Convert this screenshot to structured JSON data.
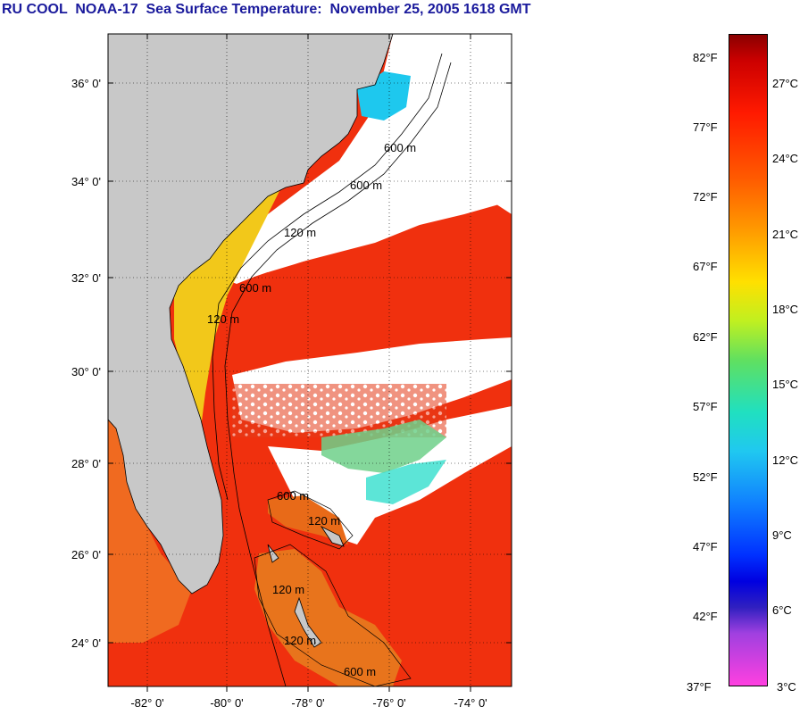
{
  "title": "RU COOL  NOAA-17  Sea Surface Temperature:  November 25, 2005 1618 GMT",
  "map": {
    "lat_labels": [
      "36° 0'",
      "34° 0'",
      "32° 0'",
      "30° 0'",
      "28° 0'",
      "26° 0'",
      "24° 0'"
    ],
    "lon_labels": [
      "-82° 0'",
      "-80° 0'",
      "-78° 0'",
      "-76° 0'",
      "-74° 0'"
    ],
    "contour_labels": [
      "120 m",
      "600 m",
      "120 m",
      "600 m",
      "600 m",
      "120 m",
      "600 m",
      "120 m",
      "120 m",
      "600 m"
    ],
    "colors": {
      "land": "#c8c8c8",
      "cloud": "#ffffff",
      "warm": "#ee2a10",
      "hot": "#ff1a00"
    }
  },
  "colorbar": {
    "fahrenheit": [
      "82°F",
      "77°F",
      "72°F",
      "67°F",
      "62°F",
      "57°F",
      "52°F",
      "47°F",
      "42°F",
      "37°F"
    ],
    "celsius": [
      "27°C",
      "24°C",
      "21°C",
      "18°C",
      "15°C",
      "12°C",
      "9°C",
      "6°C",
      "3°C"
    ]
  }
}
